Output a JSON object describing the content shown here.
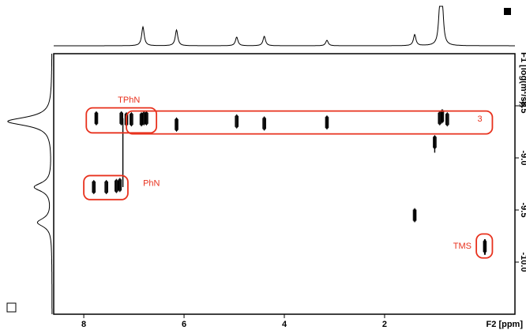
{
  "chart_data": {
    "type": "scatter",
    "subtype": "2D NMR contour (DOSY-style) with 1D projections",
    "x_axis": {
      "label": "F2 [ppm]",
      "range": [
        8.6,
        -0.6
      ],
      "reversed": true,
      "ticks": [
        8,
        6,
        4,
        2
      ],
      "tick_labels": [
        "8",
        "6",
        "4",
        "2"
      ]
    },
    "y_axis": {
      "label": "F1 [log(m²/s)]",
      "label_visible": "F1 [log(m²/s)]",
      "side": "right",
      "range": [
        -8.0,
        -10.5
      ],
      "reversed": true,
      "ticks": [
        -8.5,
        -9.0,
        -9.5,
        -10.0
      ],
      "tick_labels": [
        "-8.5",
        "-9.0",
        "-9.5",
        "-10.0"
      ]
    },
    "top_projection": {
      "peaks_ppm": [
        6.82,
        6.15,
        4.95,
        4.4,
        3.15,
        1.4,
        0.9,
        0.85
      ]
    },
    "left_projection": {
      "peaks_f1": [
        -8.65,
        -9.28,
        -9.62
      ]
    },
    "contours": [
      {
        "x": 7.75,
        "y": -8.62
      },
      {
        "x": 7.25,
        "y": -8.62
      },
      {
        "x": 7.15,
        "y": -8.63
      },
      {
        "x": 7.05,
        "y": -8.63
      },
      {
        "x": 6.85,
        "y": -8.63
      },
      {
        "x": 6.8,
        "y": -8.62
      },
      {
        "x": 6.75,
        "y": -8.62
      },
      {
        "x": 6.15,
        "y": -8.68
      },
      {
        "x": 4.95,
        "y": -8.65
      },
      {
        "x": 4.4,
        "y": -8.67
      },
      {
        "x": 3.15,
        "y": -8.66
      },
      {
        "x": 0.9,
        "y": -8.62
      },
      {
        "x": 0.85,
        "y": -8.6
      },
      {
        "x": 0.75,
        "y": -8.63
      },
      {
        "x": 1.0,
        "y": -8.85
      },
      {
        "x": 7.8,
        "y": -9.28
      },
      {
        "x": 7.55,
        "y": -9.28
      },
      {
        "x": 7.35,
        "y": -9.27
      },
      {
        "x": 7.28,
        "y": -9.26
      },
      {
        "x": 1.4,
        "y": -9.55
      },
      {
        "x": 0.0,
        "y": -9.85
      }
    ],
    "annotations": [
      {
        "text": "TPhN",
        "x": 7.1,
        "y": -8.45
      },
      {
        "text": "PhN",
        "x": 6.6,
        "y": -9.25
      },
      {
        "text": "3",
        "x": 0.1,
        "y": -8.63
      },
      {
        "text": "TMS",
        "x": 0.45,
        "y": -9.85
      }
    ],
    "grid": false,
    "colors": {
      "contour": "#000000",
      "annotation": "#e8321e"
    }
  },
  "corner_marks": {
    "top_right": "filled-square",
    "bottom_left": "empty-square"
  }
}
